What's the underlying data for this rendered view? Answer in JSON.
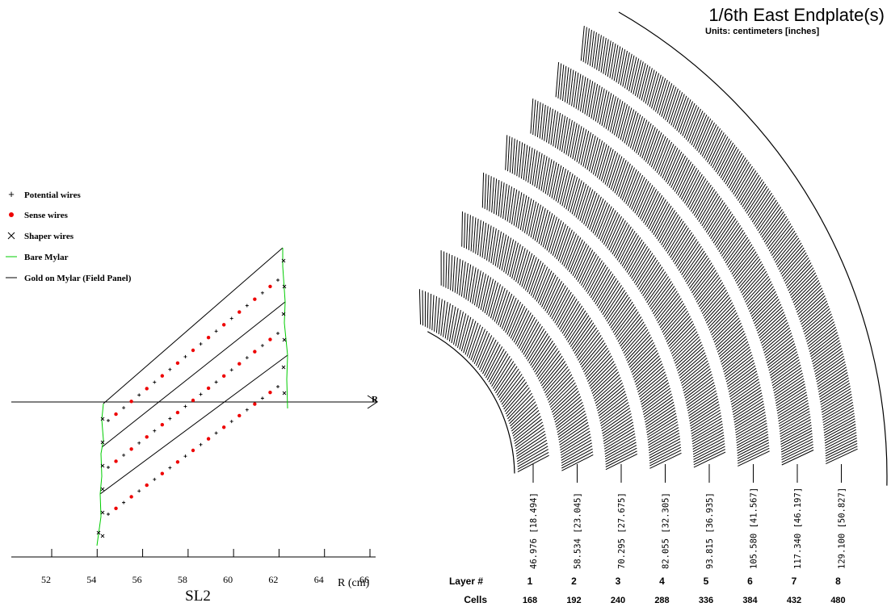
{
  "legend": [
    {
      "label": "Potential wires"
    },
    {
      "label": "Sense wires"
    },
    {
      "label": "Shaper wires"
    },
    {
      "label": "Bare Mylar"
    },
    {
      "label": "Gold on Mylar (Field Panel)"
    }
  ],
  "axis": {
    "ticks": [
      52,
      54,
      56,
      58,
      60,
      62,
      64,
      66
    ],
    "label": "R (cm)",
    "arrow_label": "R"
  },
  "panel_label": "SL2",
  "endplate": {
    "title": "1/6th East Endplate(s)",
    "subtitle": "Units: centimeters [inches]",
    "layer_header": "Layer #",
    "cells_header": "Cells",
    "layers": [
      {
        "number": 1,
        "radius": "46.976 [18.494]",
        "cells": 168
      },
      {
        "number": 2,
        "radius": "58.534 [23.045]",
        "cells": 192
      },
      {
        "number": 3,
        "radius": "70.295 [27.675]",
        "cells": 240
      },
      {
        "number": 4,
        "radius": "82.055 [32.305]",
        "cells": 288
      },
      {
        "number": 5,
        "radius": "93.815 [36.935]",
        "cells": 336
      },
      {
        "number": 6,
        "radius": "105.580 [41.567]",
        "cells": 384
      },
      {
        "number": 7,
        "radius": "117.340 [46.197]",
        "cells": 432
      },
      {
        "number": 8,
        "radius": "129.100 [50.827]",
        "cells": 480
      }
    ]
  }
}
